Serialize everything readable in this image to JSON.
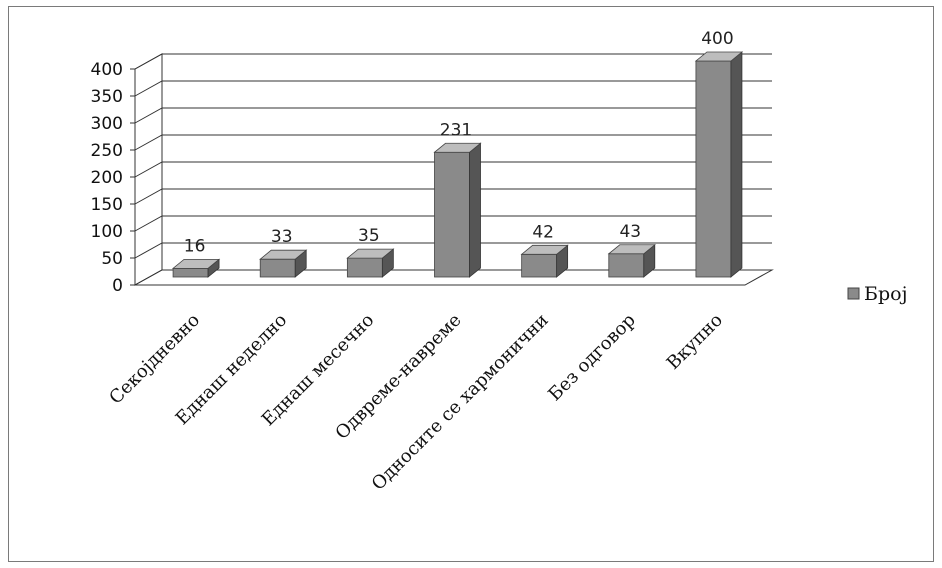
{
  "chart_data": {
    "type": "bar",
    "categories": [
      "Секојдневно",
      "Еднаш неделно",
      "Еднаш месечно",
      "Одвреме-навреме",
      "Односите се хармонични",
      "Без одговор",
      "Вкупно"
    ],
    "series": [
      {
        "name": "Број",
        "values": [
          16,
          33,
          35,
          231,
          42,
          43,
          400
        ]
      }
    ],
    "yticks": [
      "0",
      "50",
      "100",
      "150",
      "200",
      "250",
      "300",
      "350",
      "400"
    ],
    "ylim": [
      0,
      400
    ],
    "grid": true,
    "three_d": true,
    "legend_position": "right",
    "colors": {
      "bar": "#8a8a8a",
      "bar_side": "#555555",
      "bar_top": "#bdbdbd",
      "grid": "#333333"
    }
  }
}
